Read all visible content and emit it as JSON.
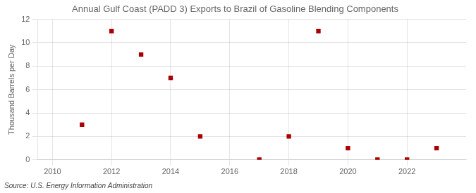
{
  "chart_data": {
    "type": "scatter",
    "title": "Annual Gulf Coast (PADD 3) Exports to Brazil of Gasoline Blending Components",
    "ylabel": "Thousand Barrels per Day",
    "annotations": [
      "Source: U.S. Energy Information Administration"
    ],
    "x": [
      2011,
      2012,
      2013,
      2014,
      2015,
      2017,
      2018,
      2019,
      2020,
      2021,
      2022,
      2023
    ],
    "values": [
      3.0,
      11.0,
      9.0,
      7.0,
      2.0,
      0.02,
      2.0,
      11.0,
      1.0,
      0.02,
      0.02,
      1.0
    ],
    "color": "#aa0000",
    "marker": "square",
    "xlim": [
      2009.5,
      2024.0
    ],
    "xticks": [
      2010,
      2012,
      2014,
      2016,
      2018,
      2020,
      2022
    ],
    "ylim": [
      0,
      12
    ],
    "yticks": [
      0,
      2,
      4,
      6,
      8,
      10,
      12
    ],
    "grid": true
  }
}
